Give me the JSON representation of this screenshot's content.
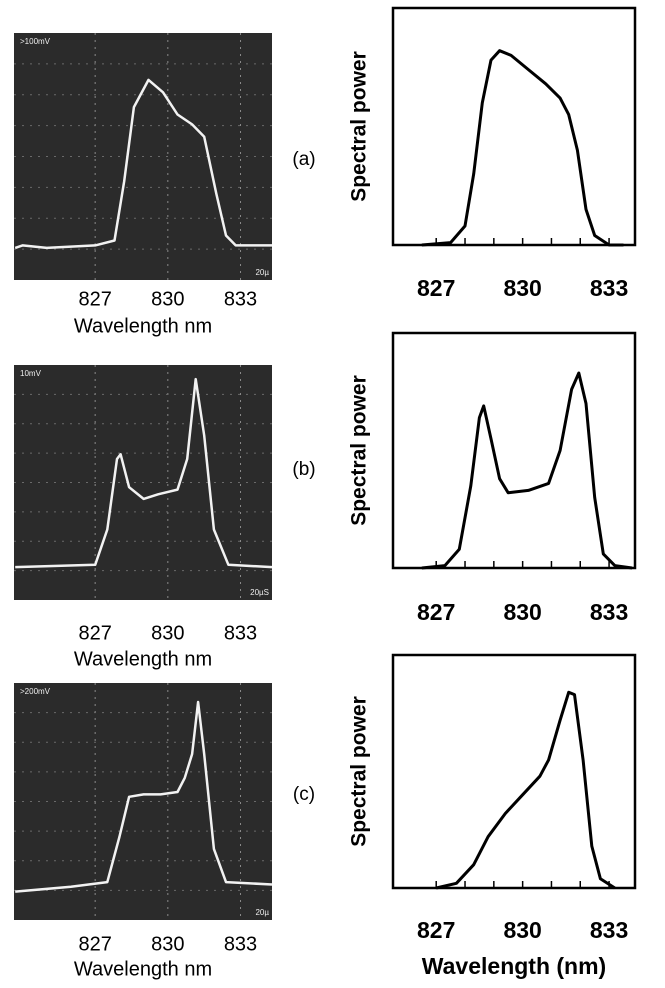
{
  "chart_data": [
    {
      "type": "line",
      "screen": true,
      "screen_labels": [
        ">100mV",
        "20µ"
      ],
      "xlabel": "Wavelength nm",
      "xlim": [
        823.65,
        834.3
      ],
      "ylim": [
        0,
        1
      ],
      "xticks": [
        827,
        830,
        833
      ],
      "grid": true,
      "background": "#2b2b2b",
      "x": [
        823.7,
        824,
        825,
        827,
        827.8,
        828.2,
        828.6,
        829.2,
        829.8,
        830.4,
        831,
        831.5,
        832,
        832.4,
        832.8,
        834.3
      ],
      "series": [
        {
          "color": "#f2f2f2",
          "values": [
            0.13,
            0.14,
            0.13,
            0.14,
            0.16,
            0.4,
            0.7,
            0.81,
            0.76,
            0.67,
            0.63,
            0.58,
            0.35,
            0.18,
            0.14,
            0.14
          ]
        }
      ]
    },
    {
      "type": "line",
      "panel_label": "(a)",
      "ylabel": "Spectral power",
      "xlim": [
        825.5,
        833.9
      ],
      "ylim": [
        0,
        1
      ],
      "xticks": [
        827,
        830,
        833
      ],
      "minor_xticks": [
        827,
        828,
        829,
        830,
        831,
        832,
        833
      ],
      "x": [
        826.5,
        827.5,
        828,
        828.3,
        828.6,
        828.9,
        829.2,
        829.6,
        830.2,
        830.8,
        831.3,
        831.6,
        831.9,
        832.2,
        832.5,
        833,
        833.5
      ],
      "series": [
        {
          "color": "#000000",
          "values": [
            0,
            0.01,
            0.08,
            0.3,
            0.6,
            0.78,
            0.82,
            0.8,
            0.74,
            0.68,
            0.62,
            0.55,
            0.4,
            0.15,
            0.04,
            0,
            0
          ]
        }
      ]
    },
    {
      "type": "line",
      "screen": true,
      "screen_labels": [
        "10mV",
        "20µS"
      ],
      "xlabel": "Wavelength nm",
      "xlim": [
        823.65,
        834.3
      ],
      "ylim": [
        0,
        1
      ],
      "xticks": [
        827,
        830,
        833
      ],
      "grid": true,
      "background": "#2b2b2b",
      "x": [
        823.7,
        827,
        827.5,
        827.9,
        828.05,
        828.4,
        829,
        829.6,
        830.4,
        830.8,
        831.15,
        831.5,
        831.9,
        832.5,
        834.3
      ],
      "series": [
        {
          "color": "#f2f2f2",
          "values": [
            0.14,
            0.15,
            0.3,
            0.6,
            0.62,
            0.48,
            0.43,
            0.45,
            0.47,
            0.6,
            0.94,
            0.7,
            0.3,
            0.15,
            0.14
          ]
        }
      ]
    },
    {
      "type": "line",
      "panel_label": "(b)",
      "ylabel": "Spectral power",
      "xlim": [
        825.5,
        833.9
      ],
      "ylim": [
        0,
        1
      ],
      "xticks": [
        827,
        830,
        833
      ],
      "minor_xticks": [
        827,
        828,
        829,
        830,
        831,
        832,
        833
      ],
      "x": [
        826.5,
        827.3,
        827.8,
        828.2,
        828.5,
        828.65,
        828.9,
        829.2,
        829.5,
        830.2,
        830.9,
        831.3,
        831.7,
        831.95,
        832.2,
        832.5,
        832.8,
        833.2,
        833.8
      ],
      "series": [
        {
          "color": "#000000",
          "values": [
            0,
            0.01,
            0.08,
            0.35,
            0.64,
            0.69,
            0.55,
            0.38,
            0.32,
            0.33,
            0.36,
            0.5,
            0.76,
            0.83,
            0.7,
            0.3,
            0.06,
            0.01,
            0
          ]
        }
      ]
    },
    {
      "type": "line",
      "screen": true,
      "screen_labels": [
        ">200mV",
        "20µ"
      ],
      "xlabel": "Wavelength nm",
      "xlim": [
        823.65,
        834.3
      ],
      "ylim": [
        0,
        1
      ],
      "xticks": [
        827,
        830,
        833
      ],
      "grid": true,
      "background": "#2b2b2b",
      "x": [
        823.7,
        826,
        827.5,
        828,
        828.4,
        829,
        829.7,
        830.4,
        830.7,
        831,
        831.25,
        831.5,
        831.9,
        832.4,
        834.3
      ],
      "series": [
        {
          "color": "#f2f2f2",
          "values": [
            0.12,
            0.14,
            0.16,
            0.35,
            0.52,
            0.53,
            0.53,
            0.54,
            0.6,
            0.7,
            0.92,
            0.7,
            0.3,
            0.16,
            0.15
          ]
        }
      ]
    },
    {
      "type": "line",
      "panel_label": "(c)",
      "ylabel": "Spectral power",
      "xlabel": "Wavelength (nm)",
      "xlim": [
        825.5,
        833.9
      ],
      "ylim": [
        0,
        1
      ],
      "xticks": [
        827,
        830,
        833
      ],
      "minor_xticks": [
        827,
        828,
        829,
        830,
        831,
        832,
        833
      ],
      "x": [
        827,
        827.7,
        828.3,
        828.8,
        829.4,
        830,
        830.6,
        830.9,
        831.3,
        831.6,
        831.8,
        832.1,
        832.4,
        832.7,
        833.2
      ],
      "series": [
        {
          "color": "#000000",
          "values": [
            0,
            0.02,
            0.1,
            0.22,
            0.32,
            0.4,
            0.48,
            0.55,
            0.72,
            0.84,
            0.83,
            0.55,
            0.18,
            0.04,
            0
          ]
        }
      ]
    }
  ]
}
